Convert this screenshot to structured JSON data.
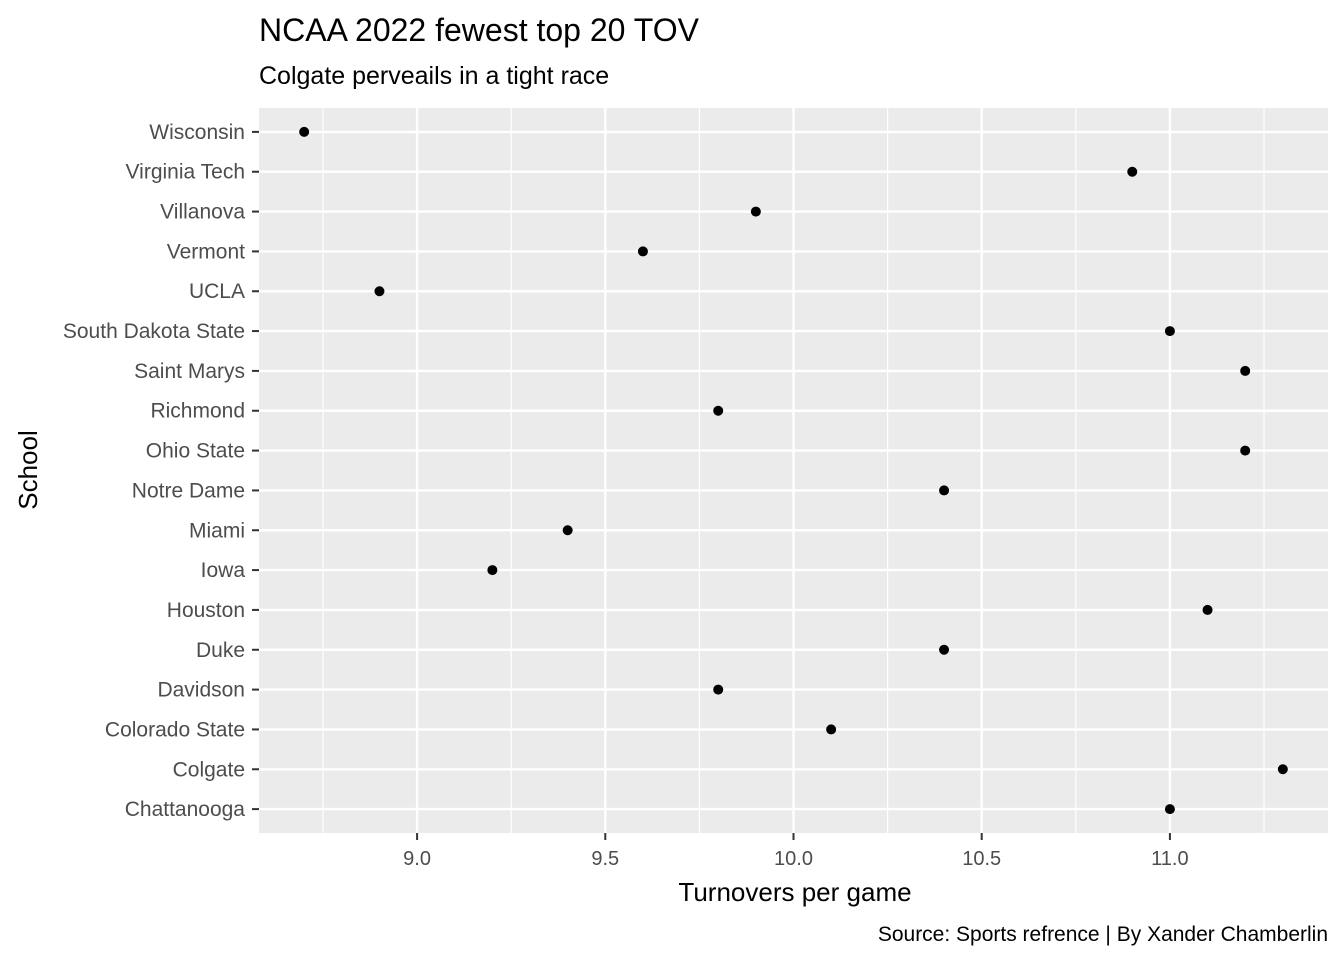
{
  "chart_data": {
    "type": "scatter",
    "title": "NCAA 2022 fewest top 20 TOV",
    "subtitle": "Colgate perveails in a tight race",
    "xlabel": "Turnovers per game",
    "ylabel": "School",
    "caption": "Source: Sports refrence | By Xander Chamberlin",
    "xlim": [
      8.58,
      11.42
    ],
    "x_ticks": [
      9.0,
      9.5,
      10.0,
      10.5,
      11.0
    ],
    "x_tick_labels": [
      "9.0",
      "9.5",
      "10.0",
      "10.5",
      "11.0"
    ],
    "grid": true,
    "legend": "none",
    "point_color": "#000000",
    "panel_background": "#ebebeb",
    "grid_color": "#ffffff",
    "categories": [
      "Chattanooga",
      "Colgate",
      "Colorado State",
      "Davidson",
      "Duke",
      "Houston",
      "Iowa",
      "Miami",
      "Notre Dame",
      "Ohio State",
      "Richmond",
      "Saint Marys",
      "South Dakota State",
      "UCLA",
      "Vermont",
      "Villanova",
      "Virginia Tech",
      "Wisconsin"
    ],
    "points": [
      {
        "school": "Chattanooga",
        "x": 11.0
      },
      {
        "school": "Colgate",
        "x": 11.3
      },
      {
        "school": "Colorado State",
        "x": 10.1
      },
      {
        "school": "Davidson",
        "x": 9.8
      },
      {
        "school": "Duke",
        "x": 10.4
      },
      {
        "school": "Houston",
        "x": 11.1
      },
      {
        "school": "Iowa",
        "x": 9.2
      },
      {
        "school": "Miami",
        "x": 9.4
      },
      {
        "school": "Notre Dame",
        "x": 10.4
      },
      {
        "school": "Ohio State",
        "x": 11.2
      },
      {
        "school": "Richmond",
        "x": 9.8
      },
      {
        "school": "Saint Marys",
        "x": 11.2
      },
      {
        "school": "South Dakota State",
        "x": 11.0
      },
      {
        "school": "UCLA",
        "x": 8.9
      },
      {
        "school": "Vermont",
        "x": 9.6
      },
      {
        "school": "Villanova",
        "x": 9.9
      },
      {
        "school": "Virginia Tech",
        "x": 10.9
      },
      {
        "school": "Wisconsin",
        "x": 8.7
      }
    ]
  }
}
